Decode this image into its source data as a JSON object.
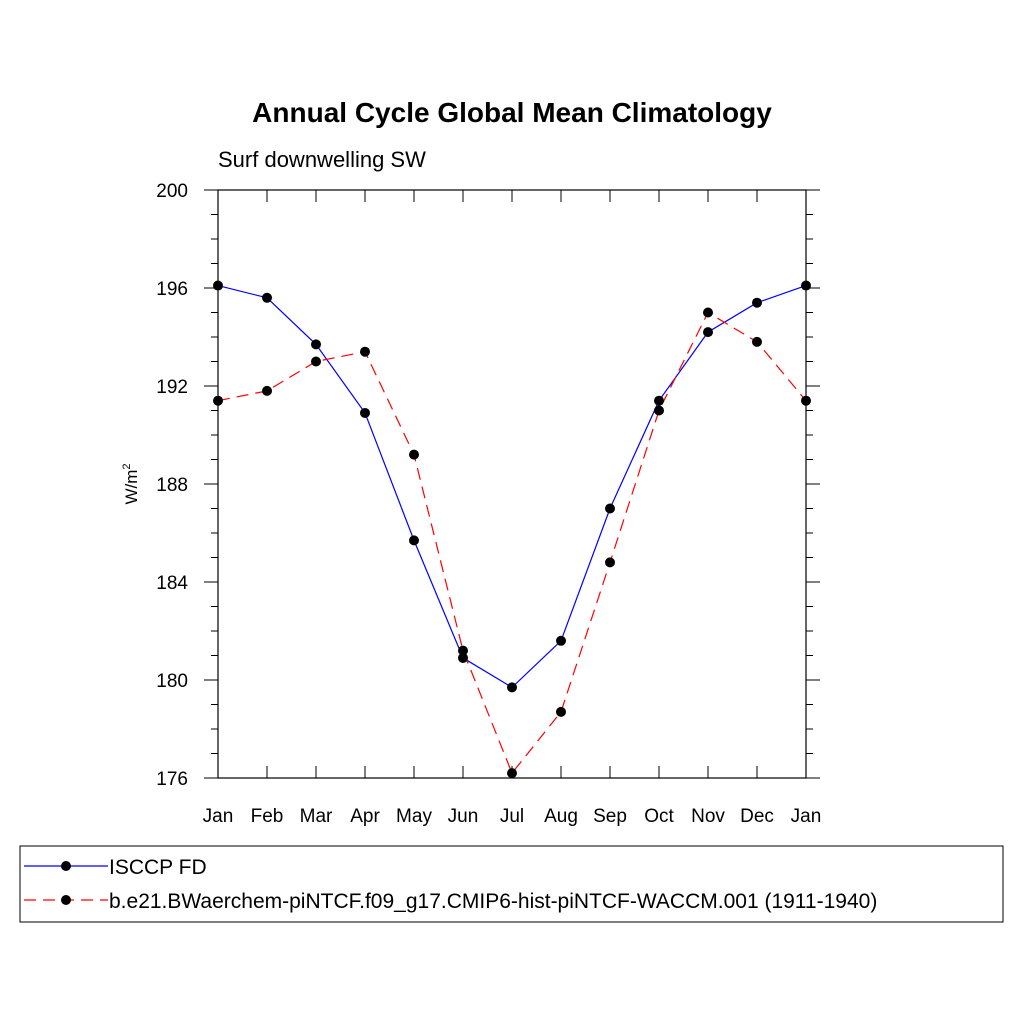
{
  "chart_data": {
    "type": "line",
    "title": "Annual Cycle Global Mean Climatology",
    "subtitle": "Surf downwelling SW",
    "ylabel": "W/m",
    "ylabel_superscript": "2",
    "xlabel": "",
    "categories": [
      "Jan",
      "Feb",
      "Mar",
      "Apr",
      "May",
      "Jun",
      "Jul",
      "Aug",
      "Sep",
      "Oct",
      "Nov",
      "Dec",
      "Jan"
    ],
    "ylim": [
      176,
      200
    ],
    "yticks": [
      "176",
      "180",
      "184",
      "188",
      "192",
      "196",
      "200"
    ],
    "grid": false,
    "legend_placement": "bottom",
    "series": [
      {
        "name": "ISCCP FD",
        "color": "#0000ff",
        "dash": "solid",
        "values": [
          196.1,
          195.6,
          193.7,
          190.9,
          185.7,
          180.9,
          179.7,
          181.6,
          187.0,
          191.4,
          194.2,
          195.4,
          196.1
        ]
      },
      {
        "name": "b.e21.BWaerchem-piNTCF.f09_g17.CMIP6-hist-piNTCF-WACCM.001 (1911-1940)",
        "color": "#ff0000",
        "dash": "dashed",
        "values": [
          191.4,
          191.8,
          193.0,
          193.4,
          189.2,
          181.2,
          176.2,
          178.7,
          184.8,
          191.0,
          195.0,
          193.8,
          191.4
        ]
      }
    ]
  }
}
